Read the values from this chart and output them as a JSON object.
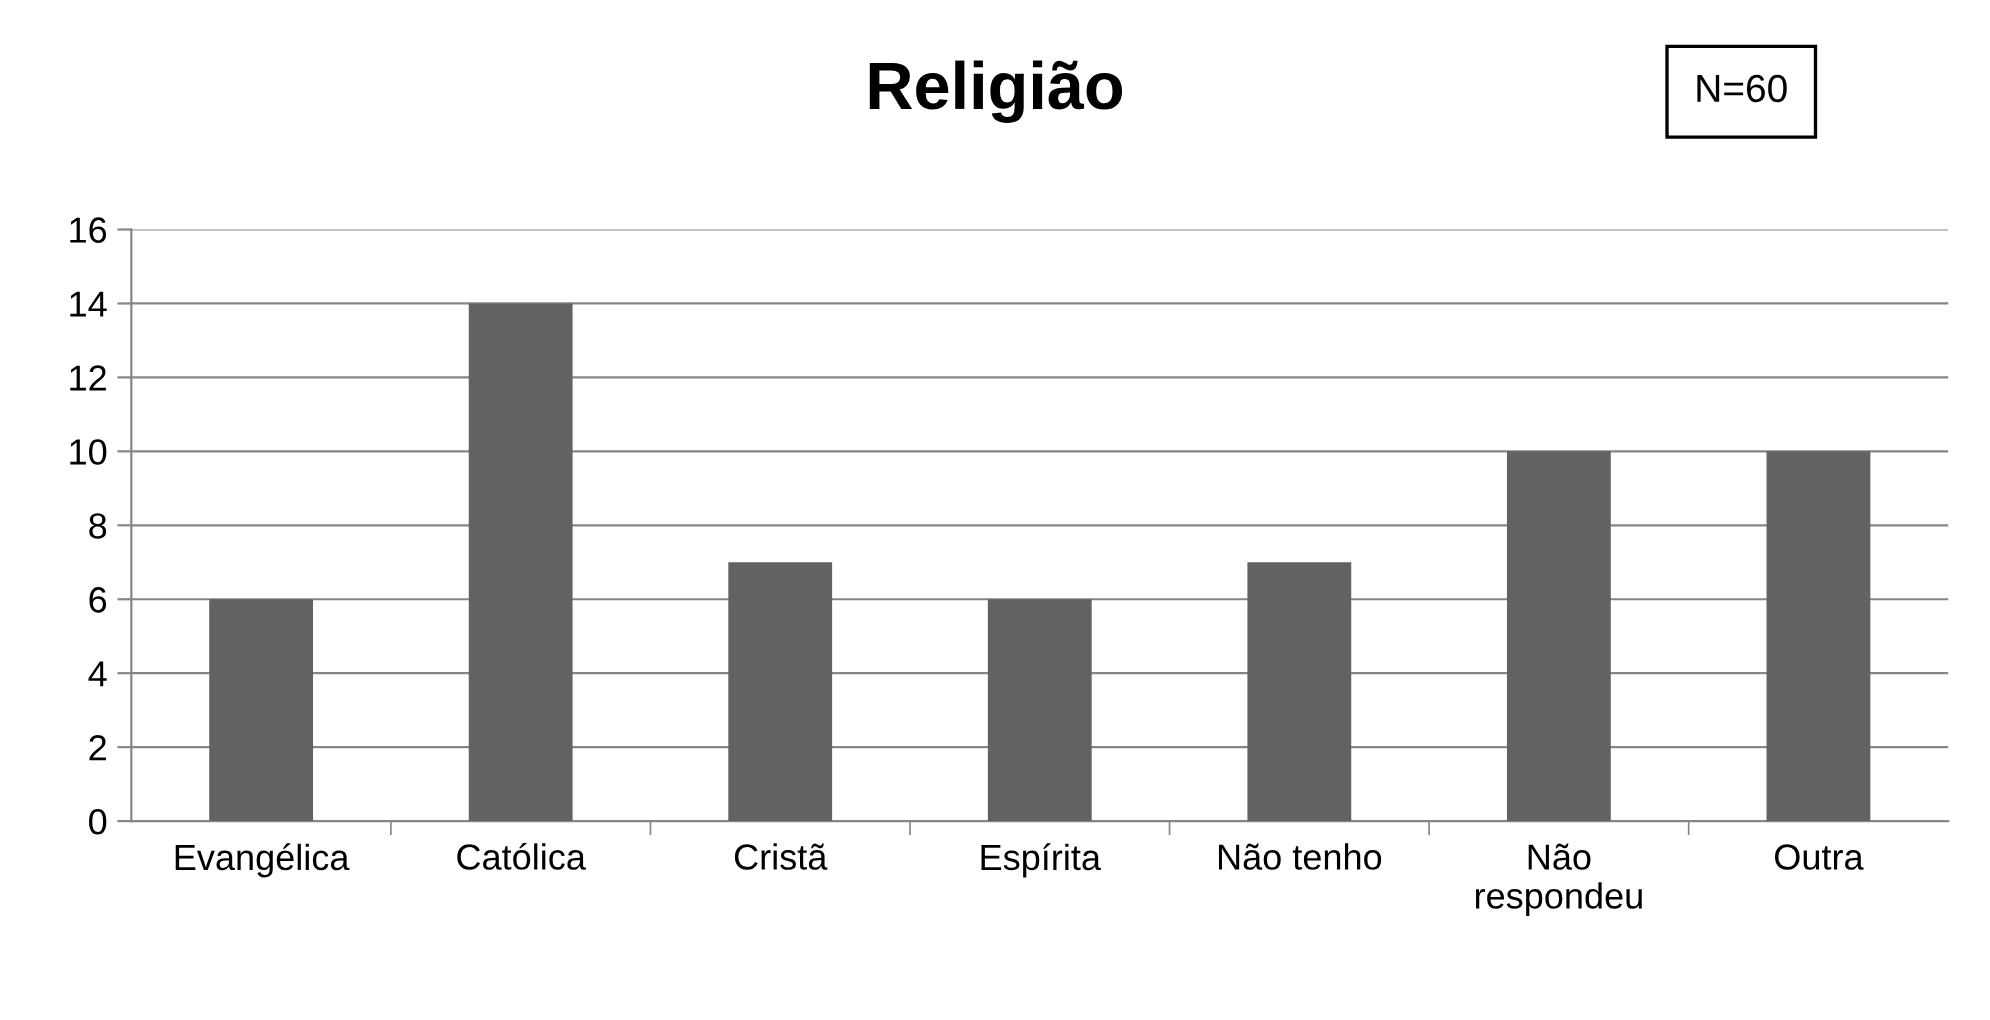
{
  "chart_data": {
    "type": "bar",
    "title": "Religião",
    "annotations": [
      "N=60"
    ],
    "categories": [
      "Evangélica",
      "Católica",
      "Cristã",
      "Espírita",
      "Não tenho",
      "Não\nrespondeu",
      "Outra"
    ],
    "values": [
      6,
      14,
      7,
      6,
      7,
      10,
      10
    ],
    "color": "#626262",
    "ylim": [
      0,
      16
    ],
    "yticks": [
      0,
      2,
      4,
      6,
      8,
      10,
      12,
      14,
      16
    ],
    "grid": "y",
    "legend": false
  }
}
